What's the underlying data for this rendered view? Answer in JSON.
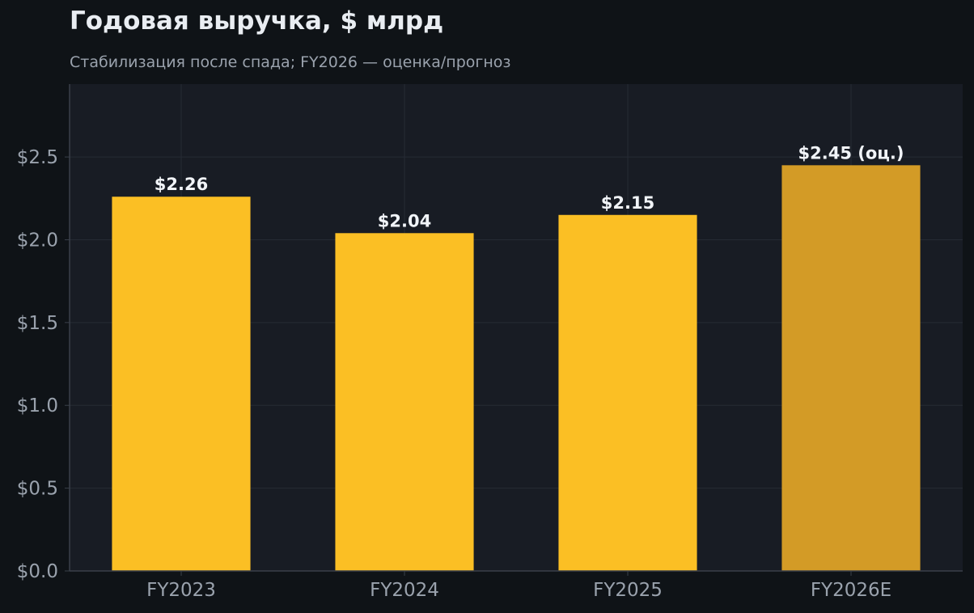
{
  "chart_data": {
    "type": "bar",
    "title": "Годовая выручка, $ млрд",
    "subtitle": "Стабилизация после спада; FY2026 — оценка/прогноз",
    "categories": [
      "FY2023",
      "FY2024",
      "FY2025",
      "FY2026E"
    ],
    "values": [
      2.26,
      2.04,
      2.15,
      2.45
    ],
    "data_labels": [
      "$2.26",
      "$2.04",
      "$2.15",
      "$2.45 (оц.)"
    ],
    "bar_colors": [
      "#fbbf24",
      "#fbbf24",
      "#fbbf24",
      "#d39b26"
    ],
    "ylim": [
      0,
      2.94
    ],
    "y_ticks": [
      0,
      0.5,
      1.0,
      1.5,
      2.0,
      2.5
    ],
    "y_tick_labels": [
      "$0.0",
      "$0.5",
      "$1.0",
      "$1.5",
      "$2.0",
      "$2.5"
    ],
    "xlabel": "",
    "ylabel": "",
    "grid": true,
    "legend": "none",
    "colors": {
      "page_background": "#0f1317",
      "plot_background": "#181c24",
      "grid": "#262b34",
      "axis": "#3a404a"
    }
  }
}
